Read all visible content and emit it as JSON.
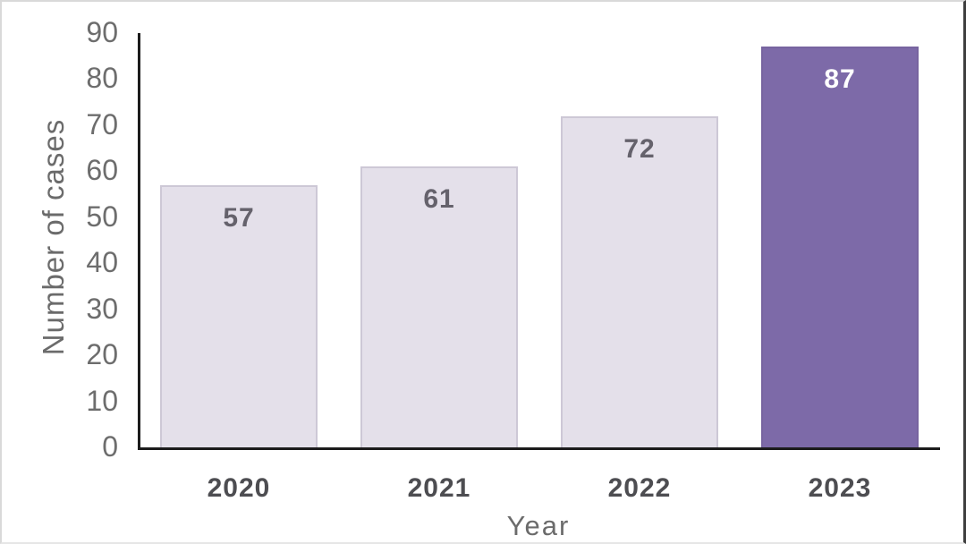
{
  "chart_data": {
    "type": "bar",
    "title": "",
    "categories": [
      "2020",
      "2021",
      "2022",
      "2023"
    ],
    "values": [
      57,
      61,
      72,
      87
    ],
    "xlabel": "Year",
    "ylabel": "Number of cases",
    "ylim": [
      0,
      90
    ],
    "yticks": [
      0,
      10,
      20,
      30,
      40,
      50,
      60,
      70,
      80,
      90
    ],
    "grid": false,
    "legend": "none",
    "bar_fill_colors": [
      "#e4e0ea",
      "#e4e0ea",
      "#e4e0ea",
      "#7d6aa8"
    ],
    "bar_border_colors": [
      "#cdc8d6",
      "#cdc8d6",
      "#cdc8d6",
      "#77649f"
    ],
    "value_label_colors": [
      "#65626c",
      "#65626c",
      "#65626c",
      "#ffffff"
    ],
    "axis_color": "#1c1c1c"
  }
}
